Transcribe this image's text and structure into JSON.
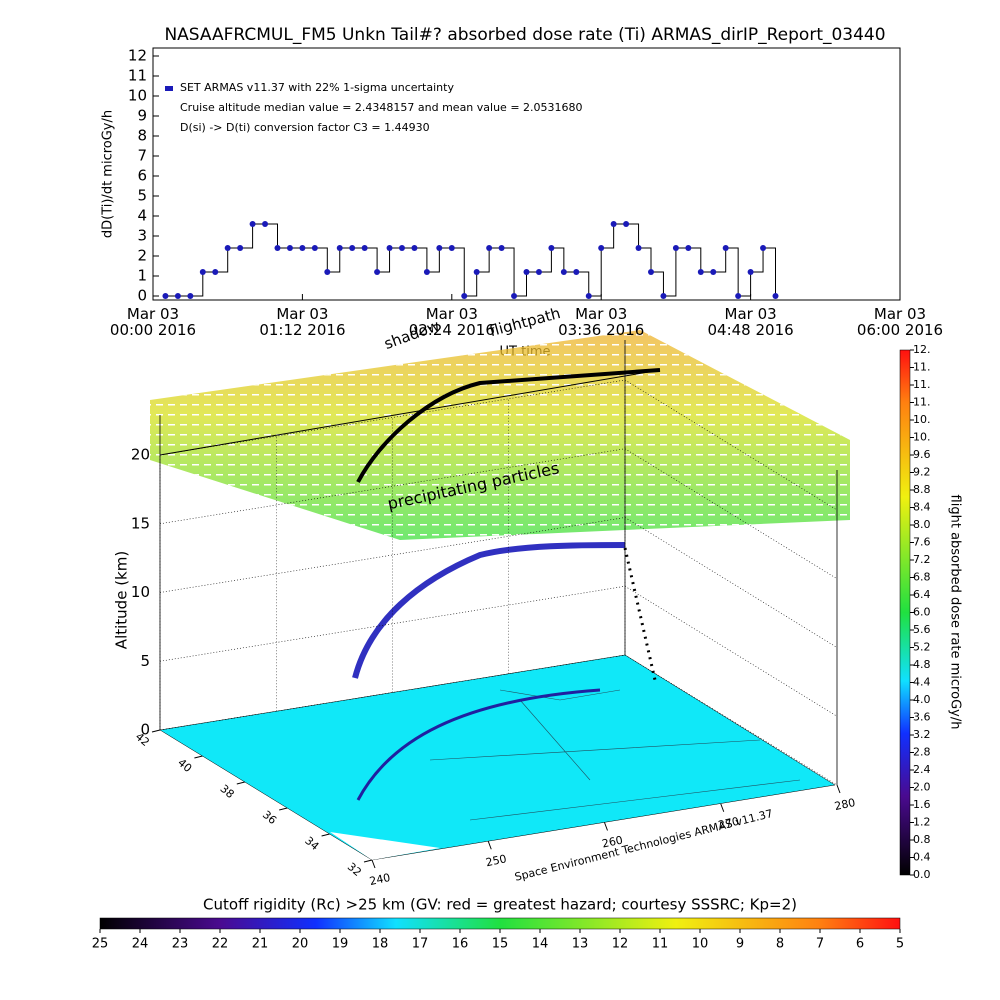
{
  "chart_data": [
    {
      "type": "line",
      "title": "NASAAFRCMUL_FM5 Unkn Tail#? absorbed dose rate (Ti) ARMAS_dirIP_Report_03440",
      "ylabel": "dD(Ti)/dt microGy/h",
      "xlabel": "UT time",
      "annotations": [
        "Cruise altitude median value = 2.4348157 and mean value = 2.0531680",
        "D(si) -> D(ti) conversion factor C3 = 1.44930"
      ],
      "xlim": [
        0,
        6
      ],
      "ylim": [
        -0.2,
        12.4
      ],
      "xticks": [
        {
          "value": 0,
          "label": "Mar 03\n00:00 2016"
        },
        {
          "value": 1.2,
          "label": "Mar 03\n01:12 2016"
        },
        {
          "value": 2.4,
          "label": "Mar 03\n02:24 2016"
        },
        {
          "value": 3.6,
          "label": "Mar 03\n03:36 2016"
        },
        {
          "value": 4.8,
          "label": "Mar 03\n04:48 2016"
        },
        {
          "value": 6,
          "label": "Mar 03\n06:00 2016"
        }
      ],
      "yticks": [
        0,
        1,
        2,
        3,
        4,
        5,
        6,
        7,
        8,
        9,
        10,
        11,
        12
      ],
      "x": [
        0.1,
        0.2,
        0.3,
        0.4,
        0.5,
        0.6,
        0.7,
        0.8,
        0.9,
        1.0,
        1.1,
        1.2,
        1.3,
        1.4,
        1.5,
        1.6,
        1.7,
        1.8,
        1.9,
        2.0,
        2.1,
        2.2,
        2.3,
        2.4,
        2.5,
        2.6,
        2.7,
        2.8,
        2.9,
        3.0,
        3.1,
        3.2,
        3.3,
        3.4,
        3.5,
        3.6,
        3.7,
        3.8,
        3.9,
        4.0,
        4.1,
        4.2,
        4.3,
        4.4,
        4.5,
        4.6,
        4.7,
        4.8,
        4.9,
        5.0
      ],
      "series": [
        {
          "name": "SET ARMAS v11.37 with 22% 1-sigma uncertainty",
          "color": "#1a1ab8",
          "values": [
            0,
            0,
            0,
            1.2,
            1.2,
            2.4,
            2.4,
            3.6,
            3.6,
            2.4,
            2.4,
            2.4,
            2.4,
            1.2,
            2.4,
            2.4,
            2.4,
            1.2,
            2.4,
            2.4,
            2.4,
            1.2,
            2.4,
            2.4,
            0,
            1.2,
            2.4,
            2.4,
            0,
            1.2,
            1.2,
            2.4,
            1.2,
            1.2,
            0,
            2.4,
            3.6,
            3.6,
            2.4,
            1.2,
            0,
            2.4,
            2.4,
            1.2,
            1.2,
            2.4,
            0,
            1.2,
            2.4,
            0
          ]
        }
      ]
    },
    {
      "type": "surface3d",
      "zlabel": "Altitude (km)",
      "zlim": [
        0,
        20
      ],
      "zticks": [
        0,
        5,
        10,
        15,
        20
      ],
      "latlim": [
        32,
        42
      ],
      "latticks": [
        32,
        34,
        36,
        38,
        40,
        42
      ],
      "lonlim": [
        240,
        280
      ],
      "lonticks": [
        240,
        250,
        260,
        270,
        280
      ],
      "annotations": [
        "shadow",
        "flightpath",
        "precipitating particles",
        "Space Environment Technologies ARMAS v11.37"
      ]
    },
    {
      "type": "colorbar",
      "label": "flight absorbed dose rate microGy/h",
      "lim": [
        0,
        12
      ],
      "ticks": [
        {
          "value": 0,
          "label": "0.0"
        },
        {
          "value": 0.4,
          "label": "0.4"
        },
        {
          "value": 0.8,
          "label": "0.8"
        },
        {
          "value": 1.2,
          "label": "1.2"
        },
        {
          "value": 1.6,
          "label": "1.6"
        },
        {
          "value": 2,
          "label": "2.0"
        },
        {
          "value": 2.4,
          "label": "2.4"
        },
        {
          "value": 2.8,
          "label": "2.8"
        },
        {
          "value": 3.2,
          "label": "3.2"
        },
        {
          "value": 3.6,
          "label": "3.6"
        },
        {
          "value": 4,
          "label": "4.0"
        },
        {
          "value": 4.4,
          "label": "4.4"
        },
        {
          "value": 4.8,
          "label": "4.8"
        },
        {
          "value": 5.2,
          "label": "5.2"
        },
        {
          "value": 5.6,
          "label": "5.6"
        },
        {
          "value": 6,
          "label": "6.0"
        },
        {
          "value": 6.4,
          "label": "6.4"
        },
        {
          "value": 6.8,
          "label": "6.8"
        },
        {
          "value": 7.2,
          "label": "7.2"
        },
        {
          "value": 7.6,
          "label": "7.6"
        },
        {
          "value": 8,
          "label": "8.0"
        },
        {
          "value": 8.4,
          "label": "8.4"
        },
        {
          "value": 8.8,
          "label": "8.8"
        },
        {
          "value": 9.2,
          "label": "9.2"
        },
        {
          "value": 9.6,
          "label": "9.6"
        },
        {
          "value": 10,
          "label": "10."
        },
        {
          "value": 10.4,
          "label": "10."
        },
        {
          "value": 10.8,
          "label": "11."
        },
        {
          "value": 11.2,
          "label": "11."
        },
        {
          "value": 11.6,
          "label": "11."
        },
        {
          "value": 12,
          "label": "12."
        }
      ]
    },
    {
      "type": "colorbar",
      "label": "Cutoff rigidity (Rc) >25 km (GV: red = greatest hazard; courtesy SSSRC; Kp=2)",
      "lim": [
        25,
        5
      ],
      "ticks": [
        25,
        24,
        23,
        22,
        21,
        20,
        19,
        18,
        17,
        16,
        15,
        14,
        13,
        12,
        11,
        10,
        9,
        8,
        7,
        6,
        5
      ]
    }
  ]
}
